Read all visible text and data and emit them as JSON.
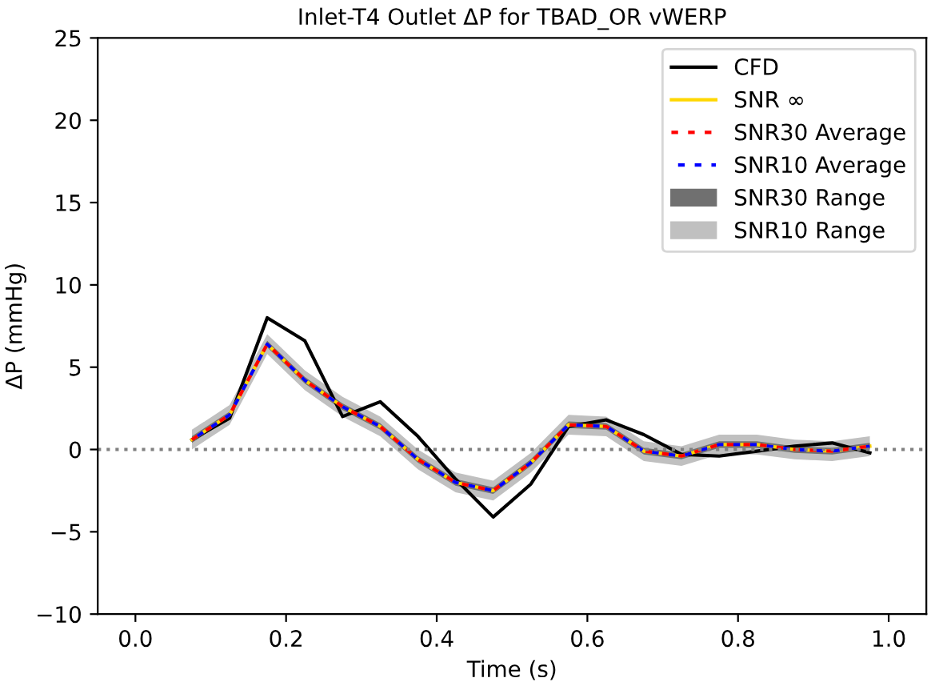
{
  "chart_data": {
    "type": "line",
    "title": "Inlet-T4 Outlet ΔP for TBAD_OR vWERP",
    "xlabel": "Time (s)",
    "ylabel": "ΔP (mmHg)",
    "x": [
      0.075,
      0.125,
      0.175,
      0.225,
      0.275,
      0.325,
      0.375,
      0.425,
      0.475,
      0.525,
      0.575,
      0.625,
      0.675,
      0.725,
      0.775,
      0.825,
      0.875,
      0.925,
      0.975
    ],
    "series": [
      {
        "name": "SNR10 Range",
        "type": "area",
        "color": "#c0c0c0",
        "values": [
          null,
          null,
          null,
          null,
          null,
          null,
          null,
          null,
          null,
          null,
          null,
          null,
          null,
          null,
          null,
          null,
          null,
          null,
          null
        ],
        "lower": [
          0.0,
          1.5,
          5.8,
          3.6,
          2.0,
          0.8,
          -1.2,
          -2.6,
          -3.1,
          -1.4,
          0.9,
          0.8,
          -0.7,
          -1.0,
          -0.3,
          -0.3,
          -0.6,
          -0.7,
          -0.4
        ],
        "upper": [
          1.2,
          2.7,
          7.0,
          4.8,
          3.2,
          2.0,
          0.0,
          -1.4,
          -1.9,
          -0.2,
          2.1,
          2.0,
          0.5,
          0.2,
          0.9,
          0.9,
          0.6,
          0.5,
          0.8
        ]
      },
      {
        "name": "SNR30 Range",
        "type": "area",
        "color": "#707070",
        "values": [
          null,
          null,
          null,
          null,
          null,
          null,
          null,
          null,
          null,
          null,
          null,
          null,
          null,
          null,
          null,
          null,
          null,
          null,
          null
        ],
        "lower": [
          0.4,
          1.9,
          6.2,
          4.0,
          2.4,
          1.2,
          -0.8,
          -2.2,
          -2.7,
          -1.0,
          1.3,
          1.2,
          -0.3,
          -0.6,
          0.1,
          0.1,
          -0.2,
          -0.3,
          0.0
        ],
        "upper": [
          0.8,
          2.3,
          6.6,
          4.4,
          2.8,
          1.6,
          -0.4,
          -1.8,
          -2.3,
          -0.6,
          1.7,
          1.6,
          0.1,
          -0.2,
          0.5,
          0.5,
          0.2,
          0.1,
          0.4
        ]
      },
      {
        "name": "CFD",
        "type": "line",
        "color": "#000000",
        "line_style": "solid",
        "values": [
          0.6,
          1.9,
          8.0,
          6.6,
          2.0,
          2.9,
          0.8,
          -1.8,
          -4.1,
          -2.1,
          1.4,
          1.8,
          0.9,
          -0.3,
          -0.4,
          -0.1,
          0.2,
          0.4,
          -0.2
        ]
      },
      {
        "name": "SNR ∞",
        "type": "line",
        "color": "#ffd700",
        "line_style": "solid",
        "values": [
          0.6,
          2.1,
          6.4,
          4.2,
          2.6,
          1.4,
          -0.6,
          -2.0,
          -2.5,
          -0.8,
          1.5,
          1.4,
          -0.1,
          -0.4,
          0.3,
          0.3,
          0.0,
          -0.1,
          0.2
        ]
      },
      {
        "name": "SNR30 Average",
        "type": "line",
        "color": "#ff0000",
        "line_style": "dashed",
        "values": [
          0.6,
          2.1,
          6.4,
          4.2,
          2.6,
          1.4,
          -0.6,
          -2.0,
          -2.5,
          -0.8,
          1.5,
          1.4,
          -0.1,
          -0.4,
          0.3,
          0.3,
          0.0,
          -0.1,
          0.2
        ]
      },
      {
        "name": "SNR10 Average",
        "type": "line",
        "color": "#0000ff",
        "line_style": "dashed",
        "values": [
          0.6,
          2.1,
          6.4,
          4.2,
          2.6,
          1.4,
          -0.6,
          -2.0,
          -2.5,
          -0.8,
          1.5,
          1.4,
          -0.1,
          -0.4,
          0.3,
          0.3,
          0.0,
          -0.1,
          0.2
        ]
      }
    ],
    "ref_lines": [
      {
        "axis": "y",
        "value": 0,
        "color": "#808080",
        "line_style": "dotted"
      }
    ],
    "xlim": [
      -0.05,
      1.05
    ],
    "xticks": [
      {
        "value": 0,
        "label": "0.0"
      },
      0.2,
      0.4,
      0.6,
      0.8,
      {
        "value": 1,
        "label": "1.0"
      }
    ],
    "ylim": [
      -10,
      25
    ],
    "yticks": [
      {
        "value": -10,
        "label": "−10"
      },
      {
        "value": -5,
        "label": "−5"
      },
      0,
      5,
      10,
      15,
      20,
      25
    ],
    "legend": "top right",
    "grid": false
  }
}
